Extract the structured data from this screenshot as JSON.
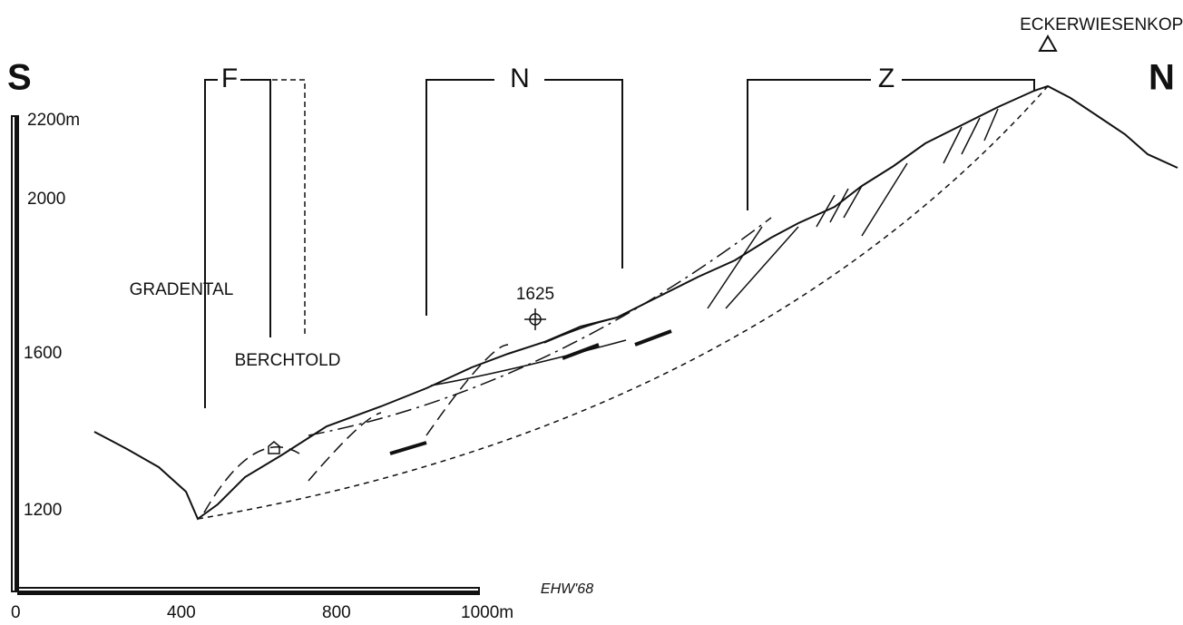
{
  "labels": {
    "south": "S",
    "north": "N",
    "peak": "ECKERWIESENKOPF",
    "zone_f": "F",
    "zone_n": "N",
    "zone_z": "Z",
    "gradental": "GRADENTAL",
    "berchtold": "BERCHTOLD",
    "point": "1625",
    "signature": "EHW'68"
  },
  "vertical_scale": [
    "2200m",
    "2000",
    "1600",
    "1200"
  ],
  "horizontal_scale": [
    "0",
    "400",
    "800",
    "1000m"
  ]
}
